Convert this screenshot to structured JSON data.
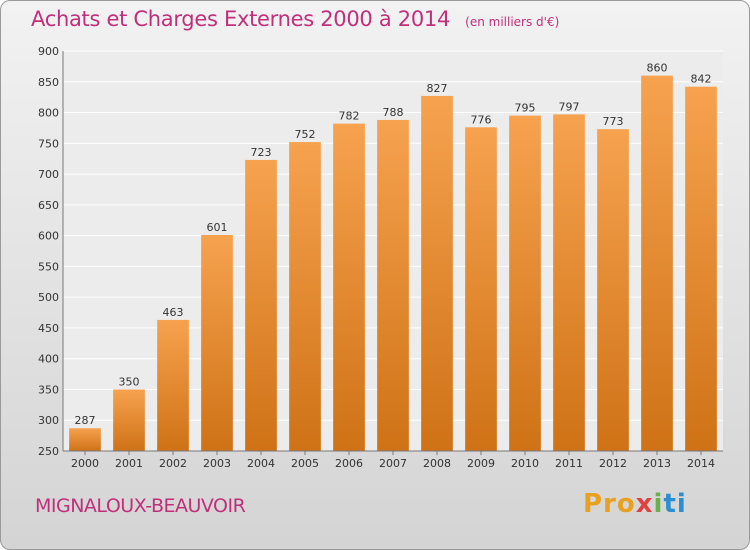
{
  "title": "Achats et Charges Externes 2000 à 2014",
  "subtitle": "(en milliers d'€)",
  "place": "MIGNALOUX-BEAUVOIR",
  "logo": {
    "p1": "Pro",
    "p2": "x",
    "p3": "i",
    "p4": "ti"
  },
  "colors": {
    "bar_light": "#f6a24f",
    "bar_dark": "#cf7216",
    "title": "#c0307a"
  },
  "chart_data": {
    "type": "bar",
    "categories": [
      "2000",
      "2001",
      "2002",
      "2003",
      "2004",
      "2005",
      "2006",
      "2007",
      "2008",
      "2009",
      "2010",
      "2011",
      "2012",
      "2013",
      "2014"
    ],
    "values": [
      287,
      350,
      463,
      601,
      723,
      752,
      782,
      788,
      827,
      776,
      795,
      797,
      773,
      860,
      842
    ],
    "ylim": [
      250,
      900
    ],
    "yticks": [
      250,
      300,
      350,
      400,
      450,
      500,
      550,
      600,
      650,
      700,
      750,
      800,
      850,
      900
    ],
    "grid": true,
    "data_labels": true
  }
}
